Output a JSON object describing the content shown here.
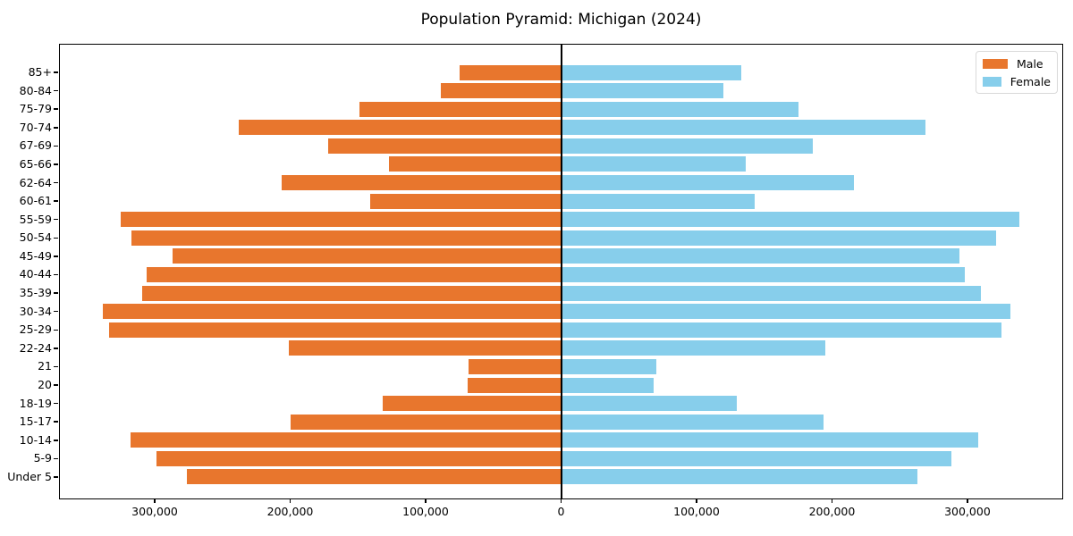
{
  "chart_data": {
    "type": "bar",
    "variant": "population-pyramid",
    "orientation": "horizontal",
    "title": "Population Pyramid: Michigan (2024)",
    "xlabel": "",
    "ylabel": "",
    "categories_order": "top-to-bottom",
    "categories": [
      "85+",
      "80-84",
      "75-79",
      "70-74",
      "67-69",
      "65-66",
      "62-64",
      "60-61",
      "55-59",
      "50-54",
      "45-49",
      "40-44",
      "35-39",
      "30-34",
      "25-29",
      "22-24",
      "21",
      "20",
      "18-19",
      "15-17",
      "10-14",
      "5-9",
      "Under 5"
    ],
    "series": [
      {
        "name": "Male",
        "side": "left",
        "color": "#e8762d",
        "values": [
          75000,
          89000,
          149000,
          238000,
          172000,
          127000,
          206000,
          141000,
          325000,
          317000,
          287000,
          306000,
          309000,
          338000,
          334000,
          201000,
          68000,
          69000,
          132000,
          200000,
          318000,
          299000,
          276000
        ]
      },
      {
        "name": "Female",
        "side": "right",
        "color": "#87ceeb",
        "values": [
          133000,
          120000,
          175000,
          269000,
          186000,
          136000,
          216000,
          143000,
          338000,
          321000,
          294000,
          298000,
          310000,
          332000,
          325000,
          195000,
          70000,
          68000,
          130000,
          194000,
          308000,
          288000,
          263000
        ]
      }
    ],
    "xlim": [
      -370000,
      370000
    ],
    "xticks": [
      {
        "value": -300000,
        "label": "300,000"
      },
      {
        "value": -200000,
        "label": "200,000"
      },
      {
        "value": -100000,
        "label": "100,000"
      },
      {
        "value": 0,
        "label": "0"
      },
      {
        "value": 100000,
        "label": "100,000"
      },
      {
        "value": 200000,
        "label": "200,000"
      },
      {
        "value": 300000,
        "label": "300,000"
      }
    ],
    "grid": false,
    "center_line": true,
    "legend_position": "upper-right",
    "background": "#ffffff"
  }
}
